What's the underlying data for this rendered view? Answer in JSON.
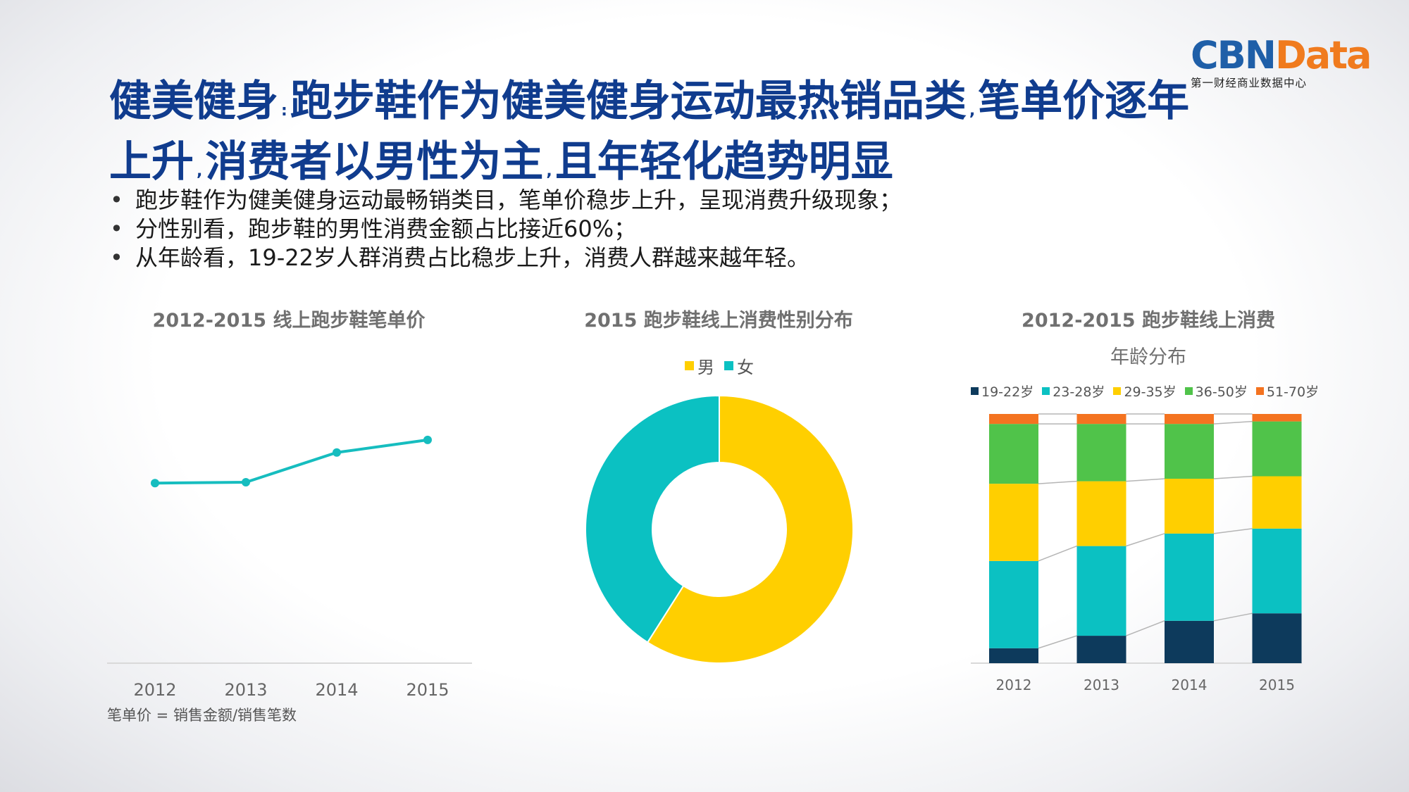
{
  "logo": {
    "brand_main": "CBN",
    "brand_accent": "Data",
    "subtitle": "第一财经商业数据中心"
  },
  "header": {
    "title_line1_a": "健美健身",
    "title_sep1": ":",
    "title_line1_b": "跑步鞋作为健美健身运动最热销品类",
    "title_sep2": ",",
    "title_line1_c": "笔单价逐年",
    "title_line2_a": "上升",
    "title_sep3": ",",
    "title_line2_b": "消费者以男性为主",
    "title_sep4": ",",
    "title_line2_c": "且年轻化趋势明显"
  },
  "bullets": [
    "跑步鞋作为健美健身运动最畅销类目，笔单价稳步上升，呈现消费升级现象；",
    "分性别看，跑步鞋的男性消费金额占比接近60%；",
    "从年龄看，19-22岁人群消费占比稳步上升，消费人群越来越年轻。"
  ],
  "footnote": "笔单价 = 销售金额/销售笔数",
  "chart_data": [
    {
      "type": "line",
      "title": "2012-2015 线上跑步鞋笔单价",
      "categories": [
        "2012",
        "2013",
        "2014",
        "2015"
      ],
      "values": [
        100,
        100.5,
        117,
        124
      ],
      "ylim": [
        0,
        165
      ],
      "color": "#16bdbf"
    },
    {
      "type": "pie",
      "title": "2015 跑步鞋线上消费性别分布",
      "labels": [
        "男",
        "女"
      ],
      "values": [
        59,
        41
      ],
      "colors": [
        "#ffcf00",
        "#0bc1c2"
      ]
    },
    {
      "type": "bar",
      "stacked": true,
      "title_line1": "2012-2015 跑步鞋线上消费",
      "title_line2": "年龄分布",
      "categories": [
        "2012",
        "2013",
        "2014",
        "2015"
      ],
      "series": [
        {
          "name": "19-22岁",
          "values": [
            6,
            11,
            17,
            20
          ],
          "color": "#0d3a5c"
        },
        {
          "name": "23-28岁",
          "values": [
            35,
            36,
            35,
            34
          ],
          "color": "#0bc1c2"
        },
        {
          "name": "29-35岁",
          "values": [
            31,
            26,
            22,
            21
          ],
          "color": "#ffcf00"
        },
        {
          "name": "36-50岁",
          "values": [
            24,
            23,
            22,
            22
          ],
          "color": "#50c34a"
        },
        {
          "name": "51-70岁",
          "values": [
            4,
            4,
            4,
            3
          ],
          "color": "#f47320"
        }
      ],
      "ylim": [
        0,
        100
      ]
    }
  ]
}
